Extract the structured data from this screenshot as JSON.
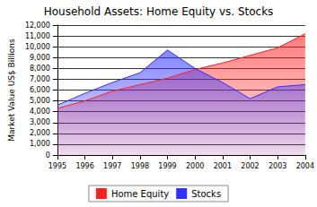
{
  "chart_data": {
    "type": "area",
    "title": "Household Assets: Home Equity vs. Stocks",
    "y_label": "Market Value US$ Billions",
    "categories": [
      "1995",
      "1996",
      "1997",
      "1998",
      "1999",
      "2000",
      "2001",
      "2002",
      "2003",
      "2004"
    ],
    "series": [
      {
        "name": "Home Equity",
        "color": "#ff2020",
        "values": [
          4300,
          5000,
          5900,
          6500,
          7100,
          7900,
          8500,
          9200,
          9900,
          11200
        ]
      },
      {
        "name": "Stocks",
        "color": "#3030ff",
        "values": [
          4600,
          5700,
          6700,
          7600,
          9700,
          8000,
          6700,
          5200,
          6300,
          6500
        ]
      }
    ],
    "ylim": [
      0,
      12000
    ],
    "yticks": [
      0,
      1000,
      2000,
      3000,
      4000,
      5000,
      6000,
      7000,
      8000,
      9000,
      10000,
      11000,
      12000
    ],
    "grid": true,
    "legend": "bottom",
    "stacked": false
  }
}
